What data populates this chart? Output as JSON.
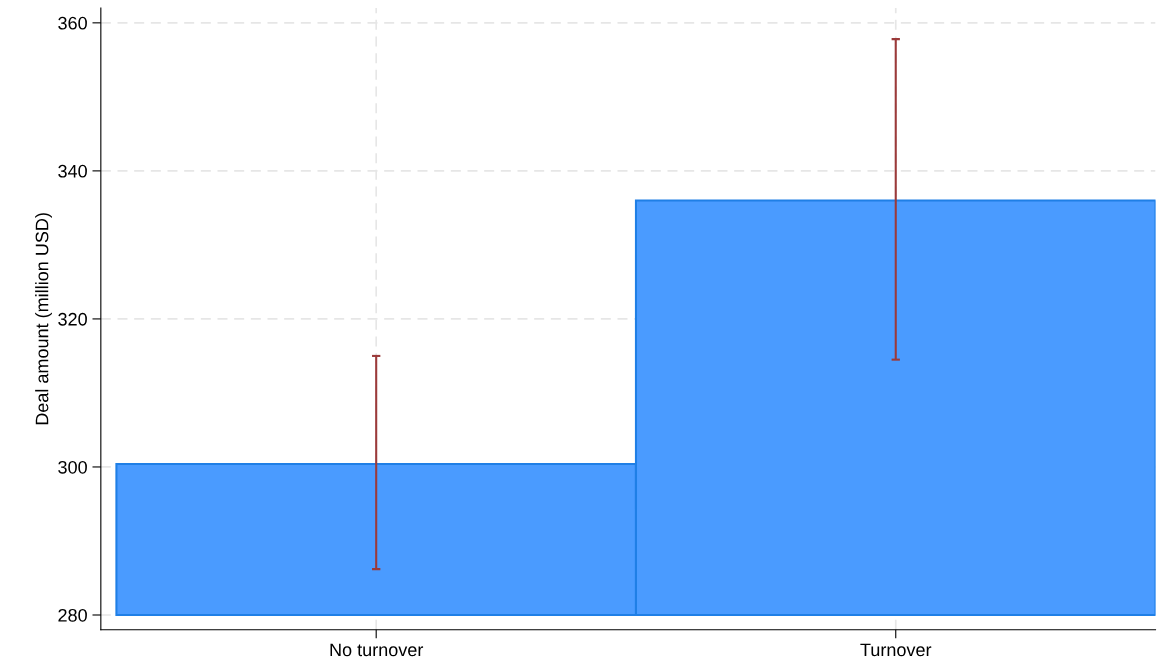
{
  "chart_data": {
    "type": "bar",
    "ylabel": "Deal amount (million USD)",
    "categories": [
      "No turnover",
      "Turnover"
    ],
    "base": [
      280,
      280
    ],
    "values": [
      20.4,
      56
    ],
    "errors": [
      [
        286.2,
        315.0
      ],
      [
        314.5,
        357.8
      ]
    ],
    "color": "#4a9bff",
    "ylim": [
      278,
      362
    ],
    "yticks": [
      280,
      300,
      320,
      340,
      360
    ],
    "grid": true
  }
}
